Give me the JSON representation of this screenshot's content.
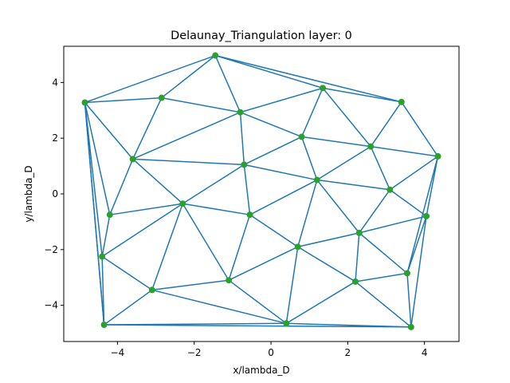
{
  "chart_data": {
    "type": "line",
    "title": "Delaunay_Triangulation layer: 0",
    "xlabel": "x/lambda_D",
    "ylabel": "y/lambda_D",
    "xlim": [
      -5.4,
      4.9
    ],
    "ylim": [
      -5.3,
      5.3
    ],
    "xticks": [
      -4,
      -2,
      0,
      2,
      4
    ],
    "yticks": [
      -4,
      -2,
      0,
      2,
      4
    ],
    "xtick_labels": [
      "−4",
      "−2",
      "0",
      "2",
      "4"
    ],
    "ytick_labels": [
      "−4",
      "−2",
      "0",
      "2",
      "4"
    ],
    "grid": false,
    "colors": {
      "edge": "#1f77b4",
      "point": "#2ca02c"
    },
    "points": [
      [
        -1.45,
        4.97
      ],
      [
        -4.85,
        3.28
      ],
      [
        -2.85,
        3.45
      ],
      [
        -0.8,
        2.93
      ],
      [
        1.35,
        3.8
      ],
      [
        3.4,
        3.3
      ],
      [
        -3.6,
        1.25
      ],
      [
        0.8,
        2.05
      ],
      [
        2.6,
        1.7
      ],
      [
        4.35,
        1.35
      ],
      [
        -0.7,
        1.05
      ],
      [
        1.2,
        0.5
      ],
      [
        3.1,
        0.15
      ],
      [
        -4.2,
        -0.75
      ],
      [
        -2.3,
        -0.35
      ],
      [
        -0.55,
        -0.75
      ],
      [
        4.05,
        -0.8
      ],
      [
        -4.4,
        -2.25
      ],
      [
        0.7,
        -1.9
      ],
      [
        2.3,
        -1.4
      ],
      [
        3.55,
        -2.85
      ],
      [
        -3.1,
        -3.45
      ],
      [
        -1.1,
        -3.1
      ],
      [
        2.2,
        -3.15
      ],
      [
        -4.35,
        -4.7
      ],
      [
        0.4,
        -4.65
      ],
      [
        3.65,
        -4.78
      ]
    ],
    "edges": [
      [
        1,
        0
      ],
      [
        0,
        5
      ],
      [
        5,
        9
      ],
      [
        9,
        20
      ],
      [
        20,
        26
      ],
      [
        26,
        24
      ],
      [
        24,
        1
      ],
      [
        1,
        17
      ],
      [
        0,
        2
      ],
      [
        0,
        3
      ],
      [
        0,
        4
      ],
      [
        1,
        2
      ],
      [
        2,
        6
      ],
      [
        2,
        3
      ],
      [
        1,
        6
      ],
      [
        3,
        4
      ],
      [
        4,
        5
      ],
      [
        3,
        7
      ],
      [
        4,
        7
      ],
      [
        4,
        8
      ],
      [
        5,
        8
      ],
      [
        3,
        10
      ],
      [
        3,
        6
      ],
      [
        6,
        10
      ],
      [
        6,
        13
      ],
      [
        6,
        14
      ],
      [
        1,
        13
      ],
      [
        13,
        17
      ],
      [
        13,
        14
      ],
      [
        10,
        7
      ],
      [
        10,
        14
      ],
      [
        10,
        11
      ],
      [
        10,
        15
      ],
      [
        7,
        11
      ],
      [
        7,
        8
      ],
      [
        8,
        9
      ],
      [
        8,
        11
      ],
      [
        8,
        12
      ],
      [
        9,
        12
      ],
      [
        9,
        16
      ],
      [
        11,
        12
      ],
      [
        11,
        15
      ],
      [
        11,
        18
      ],
      [
        11,
        19
      ],
      [
        12,
        19
      ],
      [
        12,
        16
      ],
      [
        16,
        19
      ],
      [
        16,
        20
      ],
      [
        16,
        26
      ],
      [
        14,
        15
      ],
      [
        14,
        17
      ],
      [
        14,
        21
      ],
      [
        14,
        22
      ],
      [
        15,
        22
      ],
      [
        15,
        18
      ],
      [
        17,
        21
      ],
      [
        17,
        24
      ],
      [
        21,
        24
      ],
      [
        21,
        22
      ],
      [
        22,
        18
      ],
      [
        22,
        25
      ],
      [
        21,
        25
      ],
      [
        24,
        25
      ],
      [
        18,
        19
      ],
      [
        18,
        25
      ],
      [
        18,
        23
      ],
      [
        19,
        23
      ],
      [
        19,
        20
      ],
      [
        23,
        20
      ],
      [
        23,
        26
      ],
      [
        23,
        25
      ],
      [
        25,
        26
      ],
      [
        1,
        24
      ]
    ]
  }
}
